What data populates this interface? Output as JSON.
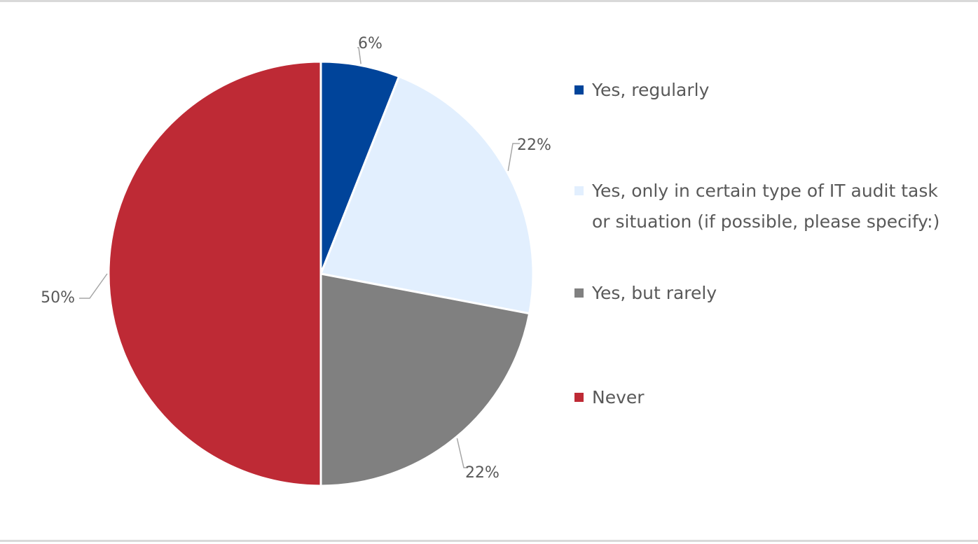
{
  "chart_data": {
    "type": "pie",
    "categories": [
      "Yes, regularly",
      "Yes, only in certain type of IT audit task or situation (if possible, please specify:)",
      "Yes, but rarely",
      "Never"
    ],
    "values": [
      6,
      22,
      22,
      50
    ],
    "data_labels": [
      "6%",
      "22%",
      "22%",
      "50%"
    ],
    "colors": [
      "#00449a",
      "#e2effe",
      "#808080",
      "#be2a35"
    ],
    "legend_position": "right",
    "start_angle": "12 o'clock, clockwise"
  }
}
